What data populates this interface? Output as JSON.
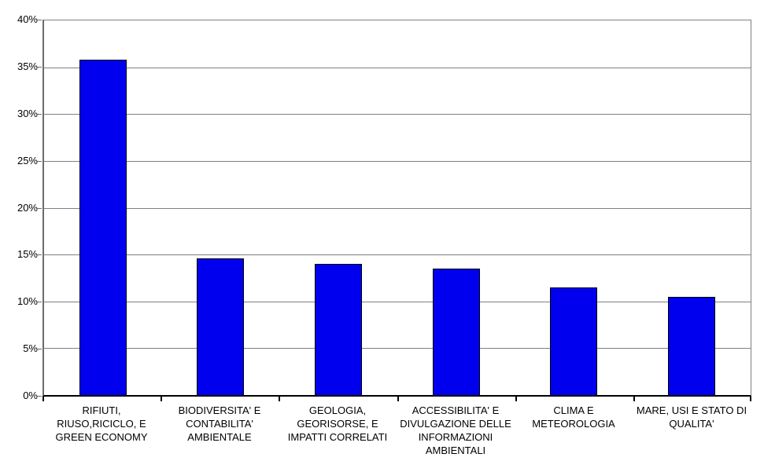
{
  "chart_data": {
    "type": "bar",
    "title": "",
    "xlabel": "",
    "ylabel": "",
    "unit": "%",
    "categories": [
      "RIFIUTI, RIUSO,RICICLO, E GREEN ECONOMY",
      "BIODIVERSITA' E CONTABILITA' AMBIENTALE",
      "GEOLOGIA, GEORISORSE, E IMPATTI CORRELATI",
      "ACCESSIBILITA' E DIVULGAZIONE DELLE INFORMAZIONI AMBIENTALI",
      "CLIMA E METEOROLOGIA",
      "MARE, USI E STATO DI QUALITA'"
    ],
    "categories_display": [
      "RIFIUTI,\nRIUSO,RICICLO, E\nGREEN ECONOMY",
      "BIODIVERSITA' E\nCONTABILITA'\nAMBIENTALE",
      "GEOLOGIA,\nGEORISORSE, E\nIMPATTI CORRELATI",
      "ACCESSIBILITA' E\nDIVULGAZIONE DELLE\nINFORMAZIONI\nAMBIENTALI",
      "CLIMA E\nMETEOROLOGIA",
      "MARE, USI E STATO DI\nQUALITA'"
    ],
    "values": [
      35.8,
      14.6,
      14.0,
      13.5,
      11.5,
      10.5
    ],
    "ylim": [
      0,
      40
    ],
    "ytick_step": 5,
    "ytick_labels": [
      "0%",
      "5%",
      "10%",
      "15%",
      "20%",
      "25%",
      "30%",
      "35%",
      "40%"
    ],
    "grid": true,
    "legend": false,
    "bar_color": "#0000ee",
    "bar_border_color": "#000000",
    "grid_color": "#808080",
    "axis_color": "#000000",
    "background": "#ffffff"
  }
}
